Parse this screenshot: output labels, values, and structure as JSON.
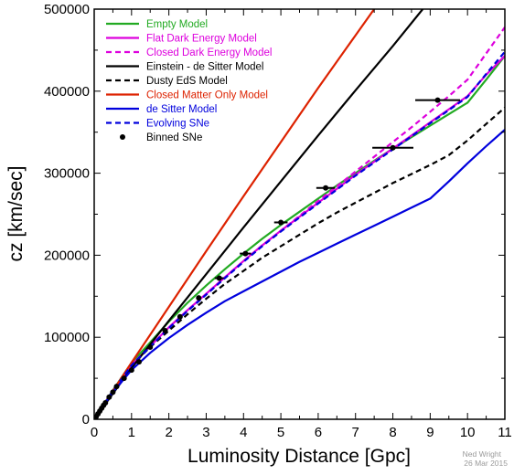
{
  "chart_data": {
    "type": "line",
    "xlabel": "Luminosity Distance [Gpc]",
    "ylabel": "cz [km/sec]",
    "xlim": [
      0,
      11
    ],
    "ylim": [
      0,
      500000
    ],
    "xticks": [
      0,
      1,
      2,
      3,
      4,
      5,
      6,
      7,
      8,
      9,
      10,
      11
    ],
    "yticks": [
      0,
      100000,
      200000,
      300000,
      400000,
      500000
    ],
    "legend_position": "top-left",
    "grid": false,
    "series": [
      {
        "name": "Empty Model",
        "color": "#22aa22",
        "dash": "solid",
        "x": [
          0,
          0.5,
          1,
          1.5,
          2,
          2.5,
          3,
          3.5,
          4,
          4.5,
          5,
          5.5,
          6,
          6.5,
          7,
          7.5,
          8,
          8.5,
          9,
          9.5,
          10,
          10.5,
          11
        ],
        "y": [
          0,
          35200,
          68800,
          93700,
          119000,
          142000,
          163000,
          183000,
          202000,
          220000,
          237000,
          253000,
          269000,
          285000,
          300000,
          315000,
          330000,
          344000,
          358000,
          372000,
          386000,
          414000,
          443000
        ]
      },
      {
        "name": "Flat Dark Energy Model",
        "color": "#dd00dd",
        "dash": "solid",
        "x": [
          0,
          0.5,
          1,
          1.5,
          2,
          2.5,
          3,
          3.5,
          4,
          4.5,
          5,
          5.5,
          6,
          6.5,
          7,
          7.5,
          8,
          8.5,
          9,
          9.5,
          10,
          10.5,
          11
        ],
        "y": [
          0,
          34500,
          66000,
          89000,
          112000,
          133000,
          153000,
          173000,
          193000,
          212000,
          230000,
          247000,
          264000,
          281000,
          298000,
          314000,
          330000,
          346000,
          362000,
          378000,
          394000,
          420000,
          443000
        ]
      },
      {
        "name": "Closed Dark Energy Model",
        "color": "#dd00dd",
        "dash": "dashed",
        "x": [
          0,
          0.5,
          1,
          1.5,
          2,
          2.5,
          3,
          3.5,
          4,
          4.5,
          5,
          5.5,
          6,
          6.5,
          7,
          7.5,
          8,
          8.5,
          9,
          9.5,
          10,
          10.5,
          11
        ],
        "y": [
          0,
          34500,
          66000,
          89000,
          112000,
          133000,
          153000,
          173000,
          193000,
          212000,
          230000,
          248000,
          266000,
          284000,
          302000,
          320000,
          338000,
          356000,
          375000,
          394000,
          414000,
          446000,
          478000
        ]
      },
      {
        "name": "Einstein - de Sitter Model",
        "color": "#000000",
        "dash": "solid",
        "x": [
          0,
          1,
          2,
          3,
          4,
          5,
          6,
          7,
          8,
          8.8
        ],
        "y": [
          0,
          62500,
          120000,
          177000,
          234000,
          290000,
          346000,
          401000,
          455000,
          500000
        ]
      },
      {
        "name": "Dusty EdS Model",
        "color": "#000000",
        "dash": "dashed",
        "x": [
          0,
          0.5,
          1,
          1.5,
          2,
          2.5,
          3,
          3.5,
          4,
          4.5,
          5,
          5.5,
          6,
          6.5,
          7,
          7.5,
          8,
          8.5,
          9,
          9.5,
          10,
          10.5,
          11
        ],
        "y": [
          0,
          34500,
          65500,
          88000,
          108000,
          128000,
          147000,
          165000,
          181000,
          197000,
          211000,
          225000,
          239000,
          252000,
          264000,
          276000,
          288000,
          299000,
          310000,
          322000,
          340000,
          360000,
          380000
        ]
      },
      {
        "name": "Closed Matter Only Model",
        "color": "#dd2200",
        "dash": "solid",
        "x": [
          0,
          1,
          2,
          3,
          4,
          5,
          6,
          7,
          7.5
        ],
        "y": [
          0,
          69000,
          137000,
          205000,
          272000,
          338000,
          404000,
          468000,
          500000
        ]
      },
      {
        "name": "de Sitter Model",
        "color": "#0000dd",
        "dash": "solid",
        "x": [
          0,
          0.5,
          1,
          1.5,
          2,
          2.5,
          3,
          3.5,
          4,
          4.5,
          5,
          5.5,
          6,
          6.5,
          7,
          7.5,
          8,
          8.5,
          9,
          9.5,
          10,
          10.5,
          11
        ],
        "y": [
          0,
          33000,
          60000,
          81000,
          99000,
          115000,
          130000,
          144000,
          156000,
          168000,
          180000,
          192000,
          203000,
          214000,
          225000,
          236000,
          247000,
          258000,
          269000,
          290000,
          312000,
          333000,
          353000
        ]
      },
      {
        "name": "Evolving SNe",
        "color": "#0000dd",
        "dash": "dashed",
        "x": [
          0,
          0.5,
          1,
          1.5,
          2,
          2.5,
          3,
          3.5,
          4,
          4.5,
          5,
          5.5,
          6,
          6.5,
          7,
          7.5,
          8,
          8.5,
          9,
          9.5,
          10,
          10.5,
          11
        ],
        "y": [
          0,
          34500,
          65800,
          88500,
          111000,
          132000,
          152000,
          172000,
          192000,
          211000,
          229000,
          246000,
          263000,
          280000,
          297000,
          313000,
          329000,
          345000,
          361000,
          377000,
          393000,
          421000,
          448000
        ]
      }
    ],
    "points": {
      "name": "Binned SNe",
      "color": "#000000",
      "x": [
        0.05,
        0.1,
        0.15,
        0.2,
        0.25,
        0.3,
        0.4,
        0.5,
        0.6,
        0.8,
        1.0,
        1.2,
        1.5,
        1.9,
        2.3,
        2.8,
        3.35,
        4.05,
        5.0,
        6.2,
        8.0,
        9.2
      ],
      "y": [
        3000,
        6500,
        10000,
        13500,
        17000,
        20000,
        27000,
        33000,
        40000,
        50000,
        60000,
        70000,
        88000,
        108000,
        125000,
        148000,
        172000,
        202000,
        240000,
        282000,
        331000,
        389000
      ],
      "xerr": [
        0,
        0,
        0,
        0,
        0,
        0,
        0,
        0,
        0,
        0,
        0,
        0,
        0,
        0,
        0,
        0,
        0.12,
        0.15,
        0.18,
        0.25,
        0.55,
        0.6
      ]
    }
  },
  "credit": {
    "author": "Ned Wright",
    "date": "26 Mar 2015"
  }
}
